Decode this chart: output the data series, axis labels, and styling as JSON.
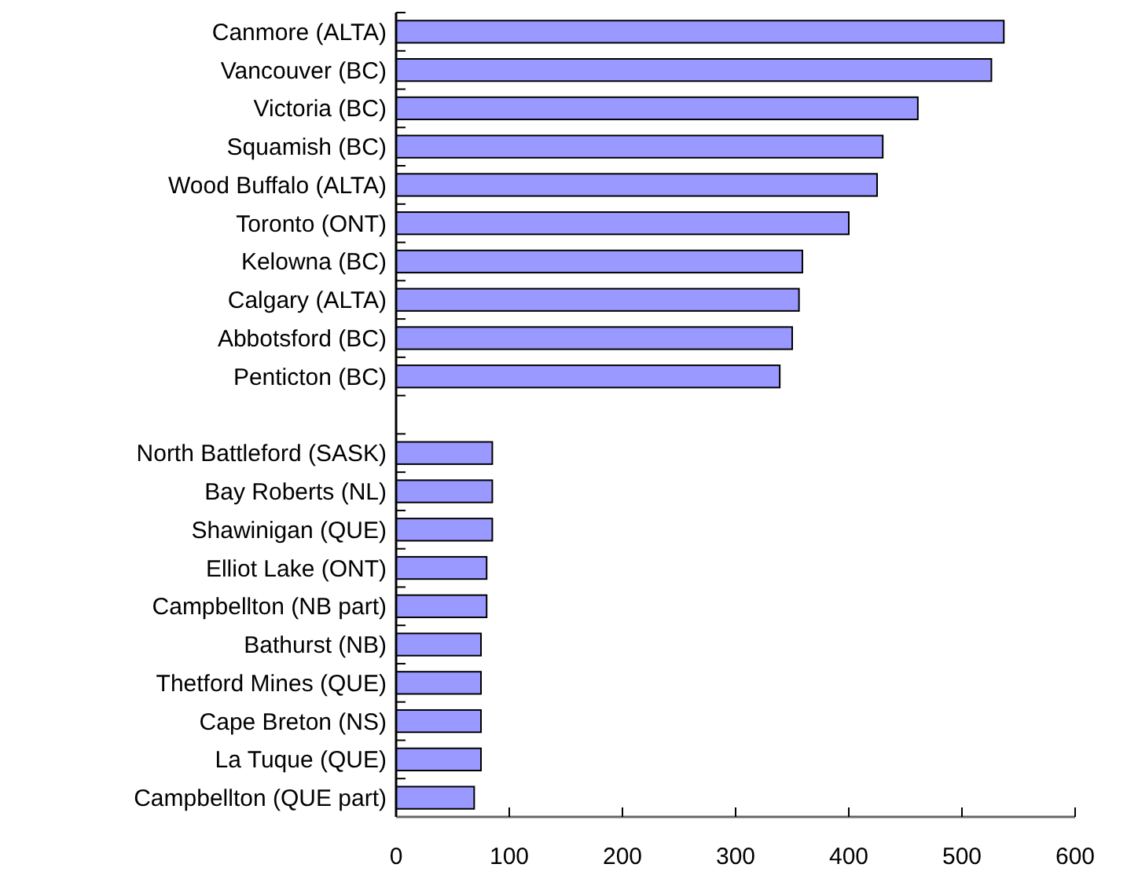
{
  "chart_data": {
    "type": "bar",
    "orientation": "horizontal",
    "categories": [
      "Canmore (ALTA)",
      "Vancouver (BC)",
      "Victoria (BC)",
      "Squamish (BC)",
      "Wood Buffalo (ALTA)",
      "Toronto (ONT)",
      "Kelowna (BC)",
      "Calgary (ALTA)",
      "Abbotsford (BC)",
      "Penticton (BC)",
      null,
      "North Battleford (SASK)",
      "Bay Roberts (NL)",
      "Shawinigan (QUE)",
      "Elliot Lake (ONT)",
      "Campbellton (NB part)",
      "Bathurst (NB)",
      "Thetford Mines (QUE)",
      "Cape Breton (NS)",
      "La Tuque (QUE)",
      "Campbellton (QUE part)"
    ],
    "values": [
      537,
      526,
      461,
      430,
      425,
      400,
      359,
      356,
      350,
      339,
      null,
      85,
      85,
      85,
      80,
      80,
      75,
      75,
      75,
      75,
      69
    ],
    "color": "#9999ff",
    "xlim": [
      0,
      600
    ],
    "xticks": [
      0,
      100,
      200,
      300,
      400,
      500,
      600
    ],
    "grid": false
  }
}
